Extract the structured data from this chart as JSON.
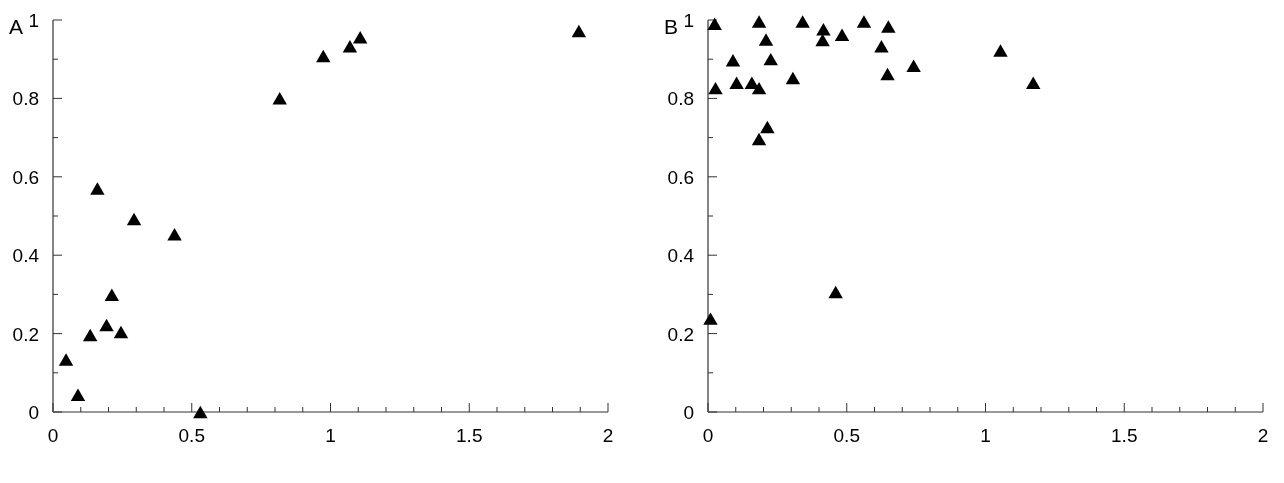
{
  "chart_data": [
    {
      "type": "scatter",
      "title": "A",
      "marker": "triangle",
      "grid": false,
      "xlim": [
        0,
        2
      ],
      "ylim": [
        0,
        1
      ],
      "xticks": [
        0,
        {
          "value": 0.1,
          "label": null
        },
        {
          "value": 0.2,
          "label": null
        },
        {
          "value": 0.3,
          "label": null
        },
        {
          "value": 0.4,
          "label": null
        },
        0.5,
        {
          "value": 0.6,
          "label": null
        },
        {
          "value": 0.7,
          "label": null
        },
        {
          "value": 0.8,
          "label": null
        },
        {
          "value": 0.9,
          "label": null
        },
        1,
        {
          "value": 1.1,
          "label": null
        },
        {
          "value": 1.2,
          "label": null
        },
        {
          "value": 1.3,
          "label": null
        },
        {
          "value": 1.4,
          "label": null
        },
        1.5,
        {
          "value": 1.6,
          "label": null
        },
        {
          "value": 1.7,
          "label": null
        },
        {
          "value": 1.8,
          "label": null
        },
        {
          "value": 1.9,
          "label": null
        },
        2
      ],
      "yticks": [
        0,
        {
          "value": 0.1,
          "label": null
        },
        0.2,
        {
          "value": 0.3,
          "label": null
        },
        0.4,
        {
          "value": 0.5,
          "label": null
        },
        0.6,
        {
          "value": 0.7,
          "label": null
        },
        0.8,
        {
          "value": 0.9,
          "label": null
        },
        1
      ],
      "series": [
        {
          "color": "#000000",
          "x": [
            0.047,
            0.09,
            0.134,
            0.16,
            0.193,
            0.212,
            0.245,
            0.292,
            0.438,
            0.531,
            0.817,
            0.974,
            1.07,
            1.107,
            1.895
          ],
          "values": [
            0.134,
            0.044,
            0.196,
            0.57,
            0.222,
            0.299,
            0.204,
            0.492,
            0.453,
            0,
            0.8,
            0.908,
            0.933,
            0.956,
            0.972
          ]
        }
      ]
    },
    {
      "type": "scatter",
      "title": "B",
      "marker": "triangle",
      "grid": false,
      "xlim": [
        0,
        2
      ],
      "ylim": [
        0,
        1
      ],
      "xticks": [
        0,
        {
          "value": 0.1,
          "label": null
        },
        {
          "value": 0.2,
          "label": null
        },
        {
          "value": 0.3,
          "label": null
        },
        {
          "value": 0.4,
          "label": null
        },
        0.5,
        {
          "value": 0.6,
          "label": null
        },
        {
          "value": 0.7,
          "label": null
        },
        {
          "value": 0.8,
          "label": null
        },
        {
          "value": 0.9,
          "label": null
        },
        1,
        {
          "value": 1.1,
          "label": null
        },
        {
          "value": 1.2,
          "label": null
        },
        {
          "value": 1.3,
          "label": null
        },
        {
          "value": 1.4,
          "label": null
        },
        1.5,
        {
          "value": 1.6,
          "label": null
        },
        {
          "value": 1.7,
          "label": null
        },
        {
          "value": 1.8,
          "label": null
        },
        {
          "value": 1.9,
          "label": null
        },
        2
      ],
      "yticks": [
        0,
        {
          "value": 0.1,
          "label": null
        },
        0.2,
        {
          "value": 0.3,
          "label": null
        },
        0.4,
        {
          "value": 0.5,
          "label": null
        },
        0.6,
        {
          "value": 0.7,
          "label": null
        },
        0.8,
        {
          "value": 0.9,
          "label": null
        },
        1
      ],
      "series": [
        {
          "color": "#000000",
          "x": [
            0.024,
            0.027,
            0.009,
            0.09,
            0.103,
            0.158,
            0.184,
            0.184,
            0.184,
            0.209,
            0.214,
            0.226,
            0.306,
            0.341,
            0.416,
            0.413,
            0.46,
            0.483,
            0.562,
            0.625,
            0.65,
            0.647,
            0.741,
            1.054,
            1.172
          ],
          "values": [
            0.99,
            0.826,
            0.238,
            0.897,
            0.84,
            0.84,
            0.996,
            0.826,
            0.696,
            0.95,
            0.727,
            0.9,
            0.852,
            0.996,
            0.976,
            0.949,
            0.306,
            0.962,
            0.996,
            0.933,
            0.983,
            0.862,
            0.883,
            0.922,
            0.84
          ]
        }
      ]
    }
  ]
}
